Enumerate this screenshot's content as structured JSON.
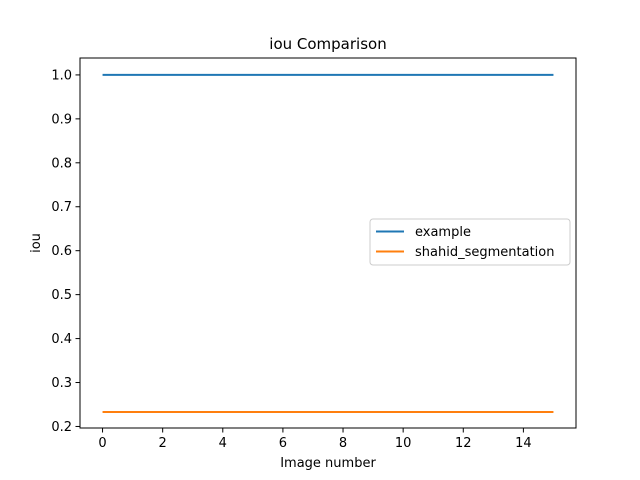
{
  "chart_data": {
    "type": "line",
    "title": "iou Comparison",
    "xlabel": "Image number",
    "ylabel": "iou",
    "xlim": [
      -0.75,
      15.75
    ],
    "ylim": [
      0.1965,
      1.0385
    ],
    "xticks": [
      0,
      2,
      4,
      6,
      8,
      10,
      12,
      14
    ],
    "yticks": [
      0.2,
      0.3,
      0.4,
      0.5,
      0.6,
      0.7,
      0.8,
      0.9,
      1.0
    ],
    "xtick_labels": [
      "0",
      "2",
      "4",
      "6",
      "8",
      "10",
      "12",
      "14"
    ],
    "ytick_labels": [
      "0.2",
      "0.3",
      "0.4",
      "0.5",
      "0.6",
      "0.7",
      "0.8",
      "0.9",
      "1.0"
    ],
    "grid": false,
    "legend_position": "center-right",
    "x": [
      0,
      1,
      2,
      3,
      4,
      5,
      6,
      7,
      8,
      9,
      10,
      11,
      12,
      13,
      14,
      15
    ],
    "series": [
      {
        "name": "example",
        "color": "#1f77b4",
        "values": [
          1.0,
          1.0,
          1.0,
          1.0,
          1.0,
          1.0,
          1.0,
          1.0,
          1.0,
          1.0,
          1.0,
          1.0,
          1.0,
          1.0,
          1.0,
          1.0
        ]
      },
      {
        "name": "shahid_segmentation",
        "color": "#ff7f0e",
        "values": [
          0.233,
          0.233,
          0.233,
          0.233,
          0.233,
          0.233,
          0.233,
          0.233,
          0.233,
          0.233,
          0.233,
          0.233,
          0.233,
          0.233,
          0.233,
          0.233
        ]
      }
    ]
  }
}
